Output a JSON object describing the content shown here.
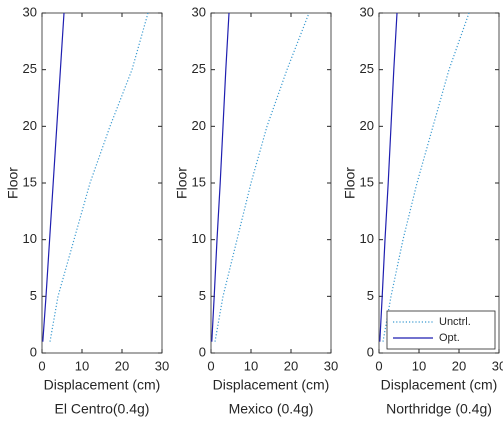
{
  "chart_data": [
    {
      "type": "line",
      "subtitle": "El Centro(0.4g)",
      "x_label": "Displacement (cm)",
      "y_label": "Floor",
      "y": [
        1,
        5,
        10,
        15,
        20,
        25,
        30
      ],
      "series": [
        {
          "name": "Unctrl.",
          "color": "#3a9ad0",
          "style": "dotted",
          "values": [
            2,
            4,
            8,
            12,
            17,
            22.5,
            26.5
          ]
        },
        {
          "name": "Opt.",
          "color": "#1f1fb0",
          "style": "solid",
          "values": [
            0.2,
            1,
            1.9,
            2.8,
            3.7,
            4.6,
            5.5
          ]
        }
      ],
      "xlim": [
        0,
        30
      ],
      "xticks": [
        0,
        10,
        20,
        30
      ],
      "ylim": [
        0,
        30
      ],
      "yticks": [
        0,
        5,
        10,
        15,
        20,
        25,
        30
      ],
      "legend": false
    },
    {
      "type": "line",
      "subtitle": "Mexico (0.4g)",
      "x_label": "Displacement (cm)",
      "y_label": "Floor",
      "y": [
        1,
        5,
        10,
        15,
        20,
        25,
        30
      ],
      "series": [
        {
          "name": "Unctrl.",
          "color": "#3a9ad0",
          "style": "dotted",
          "values": [
            1,
            3,
            6.5,
            10,
            14,
            19,
            24.5
          ]
        },
        {
          "name": "Opt.",
          "color": "#1f1fb0",
          "style": "solid",
          "values": [
            0.2,
            0.8,
            1.5,
            2.3,
            3,
            3.7,
            4.5
          ]
        }
      ],
      "xlim": [
        0,
        30
      ],
      "xticks": [
        0,
        10,
        20,
        30
      ],
      "ylim": [
        0,
        30
      ],
      "yticks": [
        0,
        5,
        10,
        15,
        20,
        25,
        30
      ],
      "legend": false
    },
    {
      "type": "line",
      "subtitle": "Northridge (0.4g)",
      "x_label": "Displacement (cm)",
      "y_label": "Floor",
      "y": [
        1,
        5,
        10,
        15,
        20,
        25,
        30
      ],
      "series": [
        {
          "name": "Unctrl.",
          "color": "#3a9ad0",
          "style": "dotted",
          "values": [
            1,
            3,
            6,
            9.5,
            13.5,
            17.5,
            22.5
          ]
        },
        {
          "name": "Opt.",
          "color": "#1f1fb0",
          "style": "solid",
          "values": [
            0.2,
            0.8,
            1.5,
            2.3,
            3,
            3.7,
            4.5
          ]
        }
      ],
      "xlim": [
        0,
        30
      ],
      "xticks": [
        0,
        10,
        20,
        30
      ],
      "ylim": [
        0,
        30
      ],
      "yticks": [
        0,
        5,
        10,
        15,
        20,
        25,
        30
      ],
      "legend": "lower right"
    }
  ]
}
